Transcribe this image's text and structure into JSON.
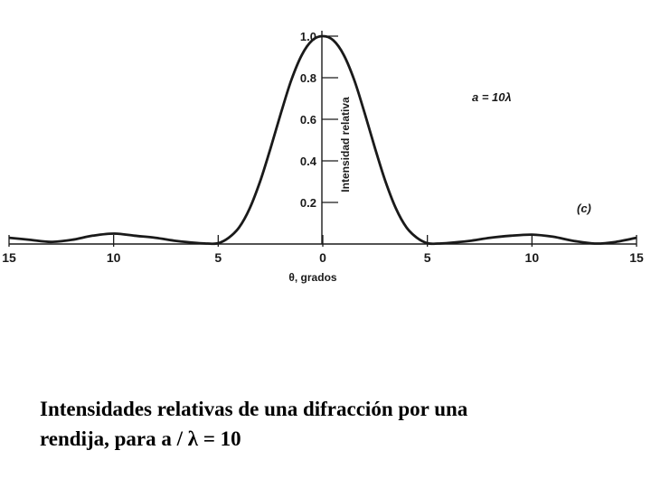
{
  "chart_data": {
    "type": "line",
    "xlabel": "θ, grados",
    "ylabel": "Intensidad relativa",
    "xlim": [
      -15,
      15
    ],
    "ylim": [
      0,
      1.0
    ],
    "x_ticks": [
      -15,
      -10,
      -5,
      0,
      5,
      10,
      15
    ],
    "x_tick_labels": [
      "15",
      "10",
      "5",
      "0",
      "5",
      "10",
      "15"
    ],
    "y_ticks": [
      0.2,
      0.4,
      0.6,
      0.8,
      1.0
    ],
    "y_tick_labels": [
      "0.2",
      "0.4",
      "0.6",
      "0.8",
      "1.0"
    ],
    "annotations": {
      "parameter": "a = 10λ",
      "panel": "(c)"
    },
    "grid": false,
    "series": [
      {
        "x": [
          -15,
          -14,
          -13,
          -12,
          -11,
          -10,
          -9,
          -8,
          -7,
          -6,
          -5.5,
          -5,
          -4.5,
          -4,
          -3.5,
          -3,
          -2.5,
          -2,
          -1.5,
          -1,
          -0.5,
          0,
          0.5,
          1,
          1.5,
          2,
          2.5,
          3,
          3.5,
          4,
          4.5,
          5,
          5.5,
          6,
          7,
          8,
          9,
          10,
          11,
          12,
          13,
          14,
          15
        ],
        "y": [
          0.03,
          0.02,
          0.01,
          0.02,
          0.04,
          0.05,
          0.04,
          0.03,
          0.015,
          0.005,
          0.002,
          0.004,
          0.03,
          0.08,
          0.17,
          0.3,
          0.46,
          0.63,
          0.79,
          0.91,
          0.98,
          1.0,
          0.98,
          0.91,
          0.79,
          0.63,
          0.46,
          0.3,
          0.17,
          0.08,
          0.03,
          0.004,
          0.002,
          0.005,
          0.015,
          0.03,
          0.04,
          0.045,
          0.035,
          0.015,
          0.002,
          0.01,
          0.03
        ]
      }
    ]
  },
  "caption": {
    "line1": "Intensidades relativas de una difracción por una",
    "line2": "rendija, para  a / λ = 10"
  },
  "colors": {
    "curve": "#1a1a1a",
    "axis": "#1a1a1a",
    "background": "#ffffff"
  }
}
